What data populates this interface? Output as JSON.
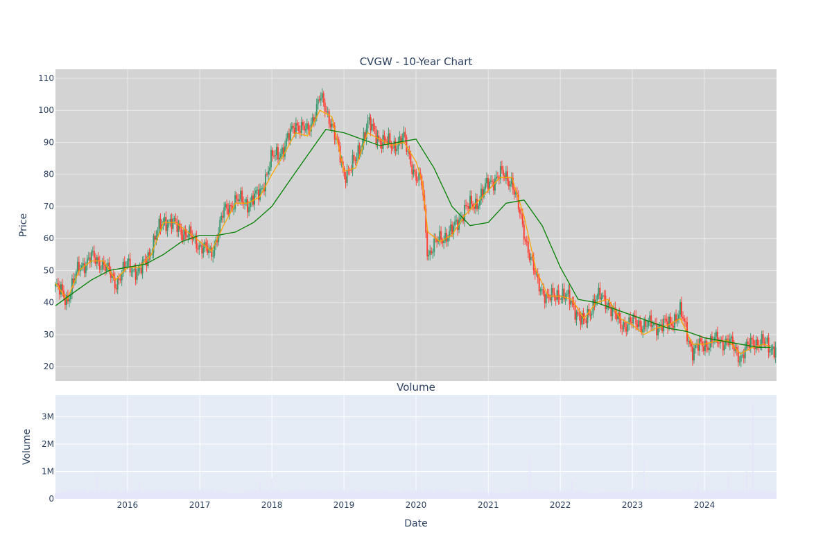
{
  "chart_data": [
    {
      "type": "candlestick",
      "title": "CVGW - 10-Year Chart",
      "ylabel": "Price",
      "ylim": [
        15.5,
        112.8
      ],
      "yticks": [
        20,
        30,
        40,
        50,
        60,
        70,
        80,
        90,
        100,
        110
      ],
      "xrange": [
        "2015-01-01",
        "2024-12-31"
      ],
      "grid": true,
      "colors": {
        "increasing": "#3D9970",
        "decreasing": "#FF4136",
        "ma_short": "#FFA500",
        "ma_long": "#008000",
        "background": "#D3D3D3",
        "grid": "#E9E9E9"
      },
      "series": [
        {
          "x": [
            "2015-01",
            "2015-03",
            "2015-05",
            "2015-07",
            "2015-09",
            "2015-11",
            "2016-01",
            "2016-03",
            "2016-05",
            "2016-07",
            "2016-09",
            "2016-11",
            "2017-01",
            "2017-03",
            "2017-05",
            "2017-07",
            "2017-09",
            "2017-11",
            "2018-01",
            "2018-03",
            "2018-05",
            "2018-07",
            "2018-09",
            "2018-11",
            "2019-01",
            "2019-03",
            "2019-05",
            "2019-07",
            "2019-09",
            "2019-11",
            "2020-01",
            "2020-02",
            "2020-03",
            "2020-05",
            "2020-07",
            "2020-09",
            "2020-11",
            "2021-01",
            "2021-03",
            "2021-05",
            "2021-07",
            "2021-09",
            "2021-11",
            "2022-01",
            "2022-03",
            "2022-05",
            "2022-07",
            "2022-09",
            "2022-11",
            "2023-01",
            "2023-03",
            "2023-05",
            "2023-07",
            "2023-09",
            "2023-11",
            "2024-01",
            "2024-03",
            "2024-05",
            "2024-07",
            "2024-09",
            "2024-11",
            "2024-12"
          ],
          "values": [
            45,
            41,
            51,
            54,
            52,
            46,
            52,
            49,
            57,
            66,
            64,
            61,
            58,
            55,
            68,
            72,
            71,
            74,
            85,
            88,
            96,
            93,
            104,
            96,
            80,
            84,
            96,
            91,
            89,
            91,
            79,
            77,
            55,
            60,
            62,
            69,
            71,
            77,
            80,
            78,
            62,
            47,
            41,
            43,
            40,
            33,
            42,
            40,
            33,
            34,
            33,
            33,
            33,
            37,
            25,
            27,
            28,
            28,
            23,
            28,
            27,
            26
          ]
        },
        {
          "x": [
            "2015-01",
            "2015-03",
            "2015-05",
            "2015-07",
            "2015-09",
            "2015-11",
            "2016-01",
            "2016-03",
            "2016-05",
            "2016-07",
            "2016-09",
            "2016-11",
            "2017-01",
            "2017-03",
            "2017-05",
            "2017-07",
            "2017-09",
            "2017-11",
            "2018-01",
            "2018-03",
            "2018-05",
            "2018-07",
            "2018-09",
            "2018-11",
            "2019-01",
            "2019-03",
            "2019-05",
            "2019-07",
            "2019-09",
            "2019-11",
            "2020-01",
            "2020-02",
            "2020-03",
            "2020-05",
            "2020-07",
            "2020-09",
            "2020-11",
            "2021-01",
            "2021-03",
            "2021-05",
            "2021-07",
            "2021-09",
            "2021-11",
            "2022-01",
            "2022-03",
            "2022-05",
            "2022-07",
            "2022-09",
            "2022-11",
            "2023-01",
            "2023-03",
            "2023-05",
            "2023-07",
            "2023-09",
            "2023-11",
            "2024-01",
            "2024-03",
            "2024-05",
            "2024-07",
            "2024-09",
            "2024-11",
            "2024-12"
          ],
          "values": [
            46,
            41,
            50,
            53,
            53,
            47,
            51,
            51,
            55,
            65,
            65,
            62,
            59,
            56,
            64,
            71,
            71,
            73,
            80,
            86,
            93,
            92,
            100,
            98,
            81,
            82,
            93,
            91,
            89,
            90,
            84,
            78,
            62,
            59,
            61,
            67,
            71,
            75,
            79,
            79,
            67,
            50,
            42,
            42,
            41,
            35,
            40,
            41,
            35,
            33,
            30,
            32,
            33,
            35,
            27,
            27,
            28,
            28,
            24,
            26,
            27,
            26
          ]
        },
        {
          "x": [
            "2015-01",
            "2015-04",
            "2015-07",
            "2015-10",
            "2016-01",
            "2016-04",
            "2016-07",
            "2016-10",
            "2017-01",
            "2017-04",
            "2017-07",
            "2017-10",
            "2018-01",
            "2018-04",
            "2018-07",
            "2018-10",
            "2019-01",
            "2019-04",
            "2019-07",
            "2019-10",
            "2020-01",
            "2020-04",
            "2020-07",
            "2020-10",
            "2021-01",
            "2021-04",
            "2021-07",
            "2021-10",
            "2022-01",
            "2022-04",
            "2022-07",
            "2022-10",
            "2023-01",
            "2023-04",
            "2023-07",
            "2023-10",
            "2024-01",
            "2024-04",
            "2024-07",
            "2024-10",
            "2024-12"
          ],
          "values": [
            39,
            43,
            47,
            50,
            51,
            52,
            55,
            59,
            61,
            61,
            62,
            65,
            70,
            78,
            86,
            94,
            93,
            91,
            89,
            90,
            91,
            82,
            70,
            64,
            65,
            71,
            72,
            64,
            51,
            41,
            40,
            38,
            36,
            34,
            32,
            31,
            29,
            28,
            27,
            26,
            26
          ]
        }
      ]
    },
    {
      "type": "bar",
      "title": "Volume",
      "ylabel": "Volume",
      "xlabel": "Date",
      "ylim": [
        0,
        3800000
      ],
      "ytick_labels": [
        "0",
        "1M",
        "2M",
        "3M"
      ],
      "xtick_labels": [
        "2016",
        "2017",
        "2018",
        "2019",
        "2020",
        "2021",
        "2022",
        "2023",
        "2024"
      ],
      "color": "#E6E6FA",
      "x": [
        "2015-01",
        "2015-04",
        "2015-08",
        "2015-12",
        "2016-03",
        "2016-06",
        "2016-08",
        "2016-11",
        "2017-02",
        "2017-05",
        "2017-08",
        "2017-11",
        "2018-01",
        "2018-03",
        "2018-06",
        "2018-09",
        "2018-12",
        "2019-03",
        "2019-06",
        "2019-09",
        "2019-12",
        "2020-03",
        "2020-06",
        "2020-09",
        "2020-12",
        "2021-03",
        "2021-06",
        "2021-08",
        "2021-09",
        "2021-12",
        "2022-03",
        "2022-06",
        "2022-09",
        "2022-12",
        "2023-03",
        "2023-06",
        "2023-09",
        "2023-12",
        "2024-02",
        "2024-05",
        "2024-08",
        "2024-09",
        "2024-10",
        "2024-12"
      ],
      "values": [
        190000,
        330000,
        870000,
        250000,
        600000,
        210000,
        1330000,
        820000,
        900000,
        230000,
        180000,
        650000,
        740000,
        220000,
        450000,
        270000,
        650000,
        230000,
        350000,
        260000,
        320000,
        1620000,
        300000,
        220000,
        290000,
        200000,
        260000,
        1560000,
        420000,
        200000,
        680000,
        190000,
        260000,
        250000,
        1340000,
        300000,
        250000,
        520000,
        620000,
        900000,
        1010000,
        3520000,
        310000,
        280000
      ]
    }
  ]
}
